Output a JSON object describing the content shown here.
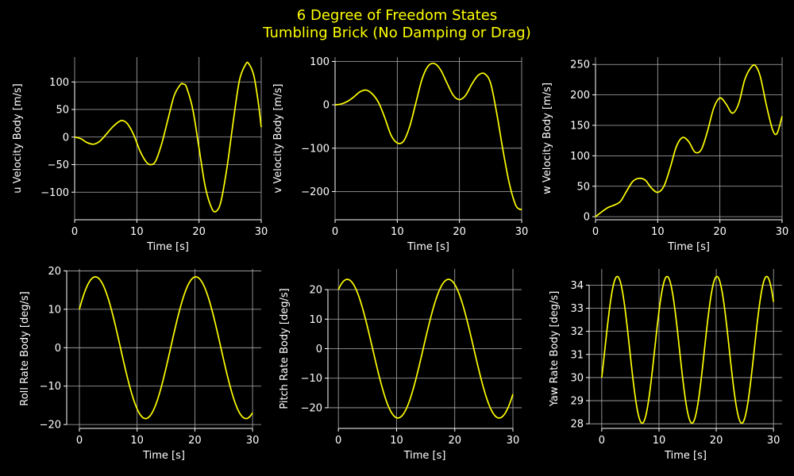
{
  "figure": {
    "title_line1": "6 Degree of Freedom States",
    "title_line2": "Tumbling Brick (No Damping or Drag)"
  },
  "colors": {
    "background": "#000000",
    "line": "#ffff00",
    "title": "#ffff00",
    "text": "#ffffff",
    "grid": "#b0b0b0"
  },
  "chart_data": [
    {
      "type": "line",
      "xlabel": "Time [s]",
      "ylabel": "u Velocity Body [m/s]",
      "xlim": [
        0,
        30
      ],
      "ylim": [
        -150,
        145
      ],
      "xticks": [
        0,
        10,
        20,
        30
      ],
      "yticks": [
        -100,
        -50,
        0,
        50,
        100
      ],
      "grid": true,
      "x": [
        0,
        1,
        2,
        3,
        4,
        5,
        6,
        7,
        7.7,
        8.5,
        9.5,
        10.5,
        11.5,
        12.2,
        13,
        14,
        15,
        16,
        17,
        17.5,
        18,
        19,
        20,
        21,
        22,
        22.7,
        23.5,
        24.5,
        25.5,
        26.5,
        27.5,
        28,
        28.8,
        29.5,
        30
      ],
      "y": [
        0,
        -3,
        -10,
        -13,
        -8,
        4,
        17,
        27,
        30,
        24,
        4,
        -25,
        -45,
        -50,
        -44,
        -12,
        32,
        75,
        95,
        96,
        90,
        50,
        -20,
        -90,
        -128,
        -135,
        -118,
        -55,
        28,
        103,
        132,
        133,
        112,
        65,
        18
      ]
    },
    {
      "type": "line",
      "xlabel": "Time [s]",
      "ylabel": "v Velocity Body [m/s]",
      "xlim": [
        0,
        30
      ],
      "ylim": [
        -265,
        110
      ],
      "xticks": [
        0,
        10,
        20,
        30
      ],
      "yticks": [
        -200,
        -100,
        0,
        100
      ],
      "grid": true,
      "x": [
        0,
        1,
        2,
        3,
        4,
        5,
        6,
        7,
        8,
        9,
        10,
        11,
        12,
        13,
        14,
        15,
        16,
        17,
        18,
        19,
        20,
        21,
        22,
        23,
        24,
        25,
        26,
        27,
        28,
        29,
        29.7,
        30
      ],
      "y": [
        0,
        2,
        8,
        18,
        30,
        34,
        25,
        5,
        -30,
        -70,
        -88,
        -84,
        -50,
        5,
        60,
        90,
        95,
        80,
        50,
        22,
        12,
        22,
        48,
        68,
        72,
        50,
        -20,
        -105,
        -180,
        -230,
        -241,
        -240
      ]
    },
    {
      "type": "line",
      "xlabel": "Time [s]",
      "ylabel": "w Velocity Body [m/s]",
      "xlim": [
        0,
        30
      ],
      "ylim": [
        -5,
        262
      ],
      "xticks": [
        0,
        10,
        20,
        30
      ],
      "yticks": [
        0,
        50,
        100,
        150,
        200,
        250
      ],
      "grid": true,
      "x": [
        0,
        1,
        2,
        3,
        4,
        5,
        6,
        7,
        8,
        9,
        10,
        11,
        12,
        13,
        14,
        15,
        16,
        17,
        18,
        19,
        20,
        21,
        22,
        23,
        24,
        25,
        25.7,
        26.5,
        27.5,
        28.5,
        29.2,
        30
      ],
      "y": [
        0,
        8,
        15,
        19,
        25,
        42,
        58,
        63,
        60,
        47,
        40,
        50,
        80,
        115,
        130,
        123,
        106,
        110,
        140,
        178,
        195,
        185,
        170,
        185,
        225,
        245,
        248,
        230,
        182,
        142,
        137,
        165
      ]
    },
    {
      "type": "line",
      "xlabel": "Time [s]",
      "ylabel": "Roll Rate Body [deg/s]",
      "xlim": [
        -2.2,
        31.5
      ],
      "ylim": [
        -21,
        20.5
      ],
      "xticks": [
        0,
        10,
        20,
        30
      ],
      "yticks": [
        -20,
        -10,
        0,
        10,
        20
      ],
      "grid": true,
      "function": "10*cos(2*pi*t/17.4) + 15.5*sin(2*pi*t/17.4)"
    },
    {
      "type": "line",
      "xlabel": "Time [s]",
      "ylabel": "Pitch Rate Body [deg/s]",
      "xlim": [
        -1.8,
        31.5
      ],
      "ylim": [
        -27,
        27
      ],
      "xticks": [
        0,
        10,
        20,
        30
      ],
      "yticks": [
        -20,
        -10,
        0,
        10,
        20
      ],
      "grid": true,
      "function": "20*cos(2*pi*t/17.4) + 12.3*sin(2*pi*t/17.4)"
    },
    {
      "type": "line",
      "xlabel": "Time [s]",
      "ylabel": "Yaw Rate Body [deg/s]",
      "xlim": [
        -2.2,
        31.5
      ],
      "ylim": [
        27.8,
        34.7
      ],
      "xticks": [
        0,
        10,
        20,
        30
      ],
      "yticks": [
        28,
        29,
        30,
        31,
        32,
        33,
        34
      ],
      "grid": true,
      "function": "31.2 - 1.2*cos(2*pi*t/8.7) + 2.94*sin(2*pi*t/8.7)"
    }
  ]
}
